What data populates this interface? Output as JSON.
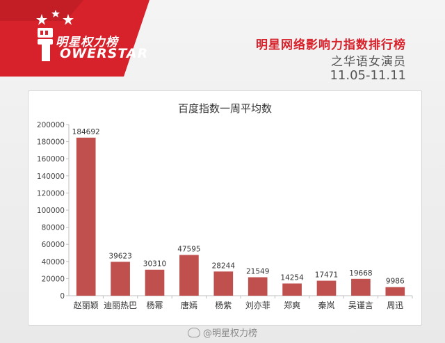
{
  "brand": {
    "logo_text": "明星权力榜",
    "logo_sub": "OWERSTAR",
    "colors": {
      "red": "#d7212b",
      "dark_red": "#b31b22",
      "bar": "#c0504d"
    }
  },
  "header": {
    "title": "明星网络影响力指数排行榜",
    "subtitle": "之华语女演员",
    "date_range": "11.05-11.11"
  },
  "footer": {
    "watermark": "@明星权力榜",
    "icon": "weibo-icon"
  },
  "chart_data": {
    "type": "bar",
    "title": "百度指数一周平均数",
    "xlabel": "",
    "ylabel": "",
    "categories": [
      "赵丽颖",
      "迪丽热巴",
      "杨幂",
      "唐嫣",
      "杨紫",
      "刘亦菲",
      "郑爽",
      "秦岚",
      "吴谨言",
      "周迅"
    ],
    "values": [
      184692,
      39623,
      30310,
      47595,
      28244,
      21549,
      14254,
      17471,
      19668,
      9986
    ],
    "value_labels": [
      "184692",
      "39623",
      "30310",
      "47595",
      "28244",
      "21549",
      "14254",
      "17471",
      "19668",
      "9986"
    ],
    "ylim": [
      0,
      200000
    ],
    "yticks": [
      "0",
      "20000",
      "40000",
      "60000",
      "80000",
      "100000",
      "120000",
      "140000",
      "160000",
      "180000",
      "200000"
    ],
    "grid": false,
    "legend": "none"
  }
}
